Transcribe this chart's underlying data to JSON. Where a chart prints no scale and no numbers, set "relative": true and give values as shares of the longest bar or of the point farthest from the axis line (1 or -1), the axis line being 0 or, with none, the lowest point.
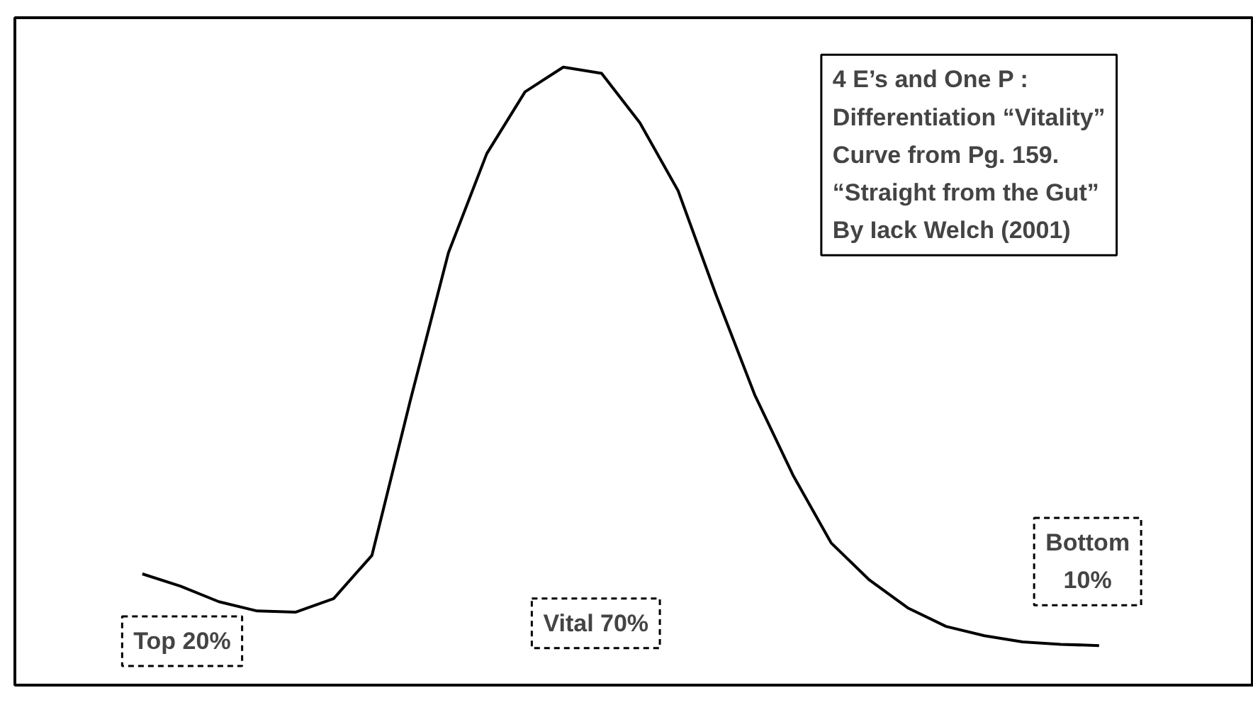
{
  "chart_data": {
    "type": "line",
    "relative": true,
    "categories": [
      null,
      null,
      null,
      null,
      null,
      null,
      null,
      null,
      null,
      null,
      null,
      null,
      null,
      null,
      null,
      null,
      null,
      null,
      null,
      null,
      null,
      null,
      null,
      null,
      null,
      null
    ],
    "series": [
      {
        "color": "#000000",
        "values": [
          0.18,
          0.16,
          0.135,
          0.12,
          0.118,
          0.14,
          0.21,
          0.46,
          0.7,
          0.86,
          0.96,
          1,
          0.99,
          0.91,
          0.8,
          0.63,
          0.47,
          0.34,
          0.23,
          0.17,
          0.125,
          0.095,
          0.08,
          0.07,
          0.066,
          0.064
        ]
      }
    ],
    "annotations": [
      "4 E’s and One P :\nDifferentiation “Vitality”\nCurve from Pg. 159.\n“Straight from the Gut”\nBy Iack Welch (2001)",
      "Top 20%",
      "Vital 70%",
      "Bottom\n10%"
    ]
  }
}
